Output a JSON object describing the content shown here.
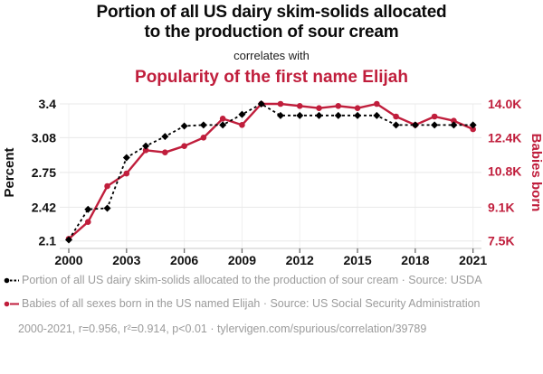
{
  "header": {
    "title_line1": "Portion of all US dairy skim-solids allocated",
    "title_line2": "to the production of sour cream",
    "connector": "correlates with",
    "subtitle": "Popularity of the first name Elijah"
  },
  "colors": {
    "series_skim": "#000000",
    "series_elijah": "#c01e3c",
    "grid_horizontal": "#e8e8e8",
    "grid_vertical": "#f0f0f0",
    "axis_line": "#c9c9c9",
    "tick_mark": "#6b6b6b",
    "tick_text": "#111111",
    "legend_text": "#9b9b9b",
    "title_text": "#0b0b0b"
  },
  "chart_data": {
    "type": "line",
    "x": [
      2000,
      2001,
      2002,
      2003,
      2004,
      2005,
      2006,
      2007,
      2008,
      2009,
      2010,
      2011,
      2012,
      2013,
      2014,
      2015,
      2016,
      2017,
      2018,
      2019,
      2020,
      2021
    ],
    "x_tick_labels": [
      "2000",
      "2003",
      "2006",
      "2009",
      "2012",
      "2015",
      "2018",
      "2021"
    ],
    "left_axis": {
      "title": "Percent",
      "range": [
        2.1,
        3.4
      ],
      "ticks": [
        2.1,
        2.42,
        2.75,
        3.08,
        3.4
      ],
      "tick_labels": [
        "2.1",
        "2.42",
        "2.75",
        "3.08",
        "3.4"
      ]
    },
    "right_axis": {
      "title": "Babies born",
      "range": [
        7.5,
        14.0
      ],
      "unit": "thousands",
      "ticks": [
        7.5,
        9.1,
        10.8,
        12.4,
        14.0
      ],
      "tick_labels": [
        "7.5K",
        "9.1K",
        "10.8K",
        "12.4K",
        "14.0K"
      ]
    },
    "series": [
      {
        "name": "Portion of all US dairy skim-solids allocated to the production of sour cream",
        "source": "USDA",
        "axis": "left",
        "style": "dashed",
        "marker": "diamond",
        "color": "#000000",
        "values": [
          2.11,
          2.4,
          2.41,
          2.89,
          3.0,
          3.09,
          3.19,
          3.2,
          3.2,
          3.3,
          3.4,
          3.29,
          3.29,
          3.29,
          3.29,
          3.29,
          3.29,
          3.2,
          3.2,
          3.2,
          3.2,
          3.2
        ]
      },
      {
        "name": "Babies of all sexes born in the US named Elijah",
        "source": "US Social Security Administration",
        "axis": "right",
        "style": "solid",
        "marker": "circle",
        "color": "#c01e3c",
        "values": [
          7.6,
          8.4,
          10.1,
          10.7,
          11.8,
          11.7,
          12.0,
          12.4,
          13.3,
          13.0,
          14.0,
          14.0,
          13.9,
          13.8,
          13.9,
          13.8,
          14.0,
          13.4,
          13.0,
          13.4,
          13.2,
          12.8
        ]
      }
    ],
    "grid": true,
    "legend_position": "bottom",
    "stats": {
      "years": "2000-2021",
      "r": 0.956,
      "r2": 0.914,
      "p": "<0.01"
    }
  },
  "legend": {
    "items": [
      {
        "label": "Portion of all US dairy skim-solids allocated to the production of sour cream · Source: USDA"
      },
      {
        "label": "Babies of all sexes born in the US named Elijah · Source: US Social Security Administration"
      }
    ],
    "footnote": "2000-2021, r=0.956, r²=0.914, p<0.01 · tylervigen.com/spurious/correlation/39789"
  }
}
